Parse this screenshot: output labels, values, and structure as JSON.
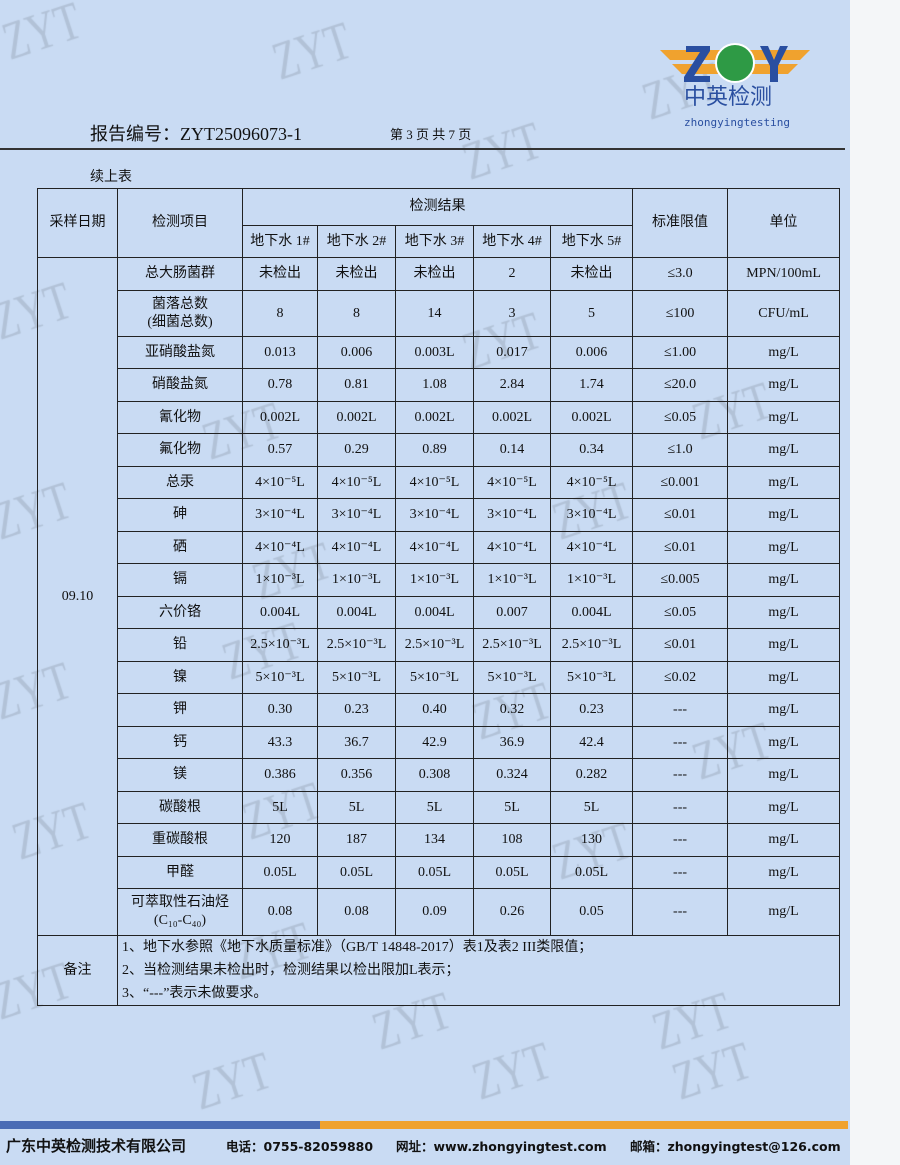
{
  "header": {
    "report_no": "报告编号：ZYT25096073-1",
    "page_of": "第 3 页 共 7 页",
    "logo_letters": "ZOY",
    "logo_cn": "中英检测",
    "logo_en": "zhongyingtesting"
  },
  "watermark": "ZYT",
  "continued": "续上表",
  "table": {
    "h_date": "采样日期",
    "h_item": "检测项目",
    "h_result": "检测结果",
    "h_limit": "标准限值",
    "h_unit": "单位",
    "sites": [
      "地下水 1#",
      "地下水 2#",
      "地下水 3#",
      "地下水 4#",
      "地下水 5#"
    ],
    "date": "09.10",
    "rows": [
      {
        "item": "总大肠菌群",
        "v": [
          "未检出",
          "未检出",
          "未检出",
          "2",
          "未检出"
        ],
        "limit": "≤3.0",
        "unit": "MPN/100mL"
      },
      {
        "item": "菌落总数\n(细菌总数)",
        "v": [
          "8",
          "8",
          "14",
          "3",
          "5"
        ],
        "limit": "≤100",
        "unit": "CFU/mL"
      },
      {
        "item": "亚硝酸盐氮",
        "v": [
          "0.013",
          "0.006",
          "0.003L",
          "0.017",
          "0.006"
        ],
        "limit": "≤1.00",
        "unit": "mg/L"
      },
      {
        "item": "硝酸盐氮",
        "v": [
          "0.78",
          "0.81",
          "1.08",
          "2.84",
          "1.74"
        ],
        "limit": "≤20.0",
        "unit": "mg/L"
      },
      {
        "item": "氰化物",
        "v": [
          "0.002L",
          "0.002L",
          "0.002L",
          "0.002L",
          "0.002L"
        ],
        "limit": "≤0.05",
        "unit": "mg/L"
      },
      {
        "item": "氟化物",
        "v": [
          "0.57",
          "0.29",
          "0.89",
          "0.14",
          "0.34"
        ],
        "limit": "≤1.0",
        "unit": "mg/L"
      },
      {
        "item": "总汞",
        "v": [
          "4×10⁻⁵L",
          "4×10⁻⁵L",
          "4×10⁻⁵L",
          "4×10⁻⁵L",
          "4×10⁻⁵L"
        ],
        "limit": "≤0.001",
        "unit": "mg/L"
      },
      {
        "item": "砷",
        "v": [
          "3×10⁻⁴L",
          "3×10⁻⁴L",
          "3×10⁻⁴L",
          "3×10⁻⁴L",
          "3×10⁻⁴L"
        ],
        "limit": "≤0.01",
        "unit": "mg/L"
      },
      {
        "item": "硒",
        "v": [
          "4×10⁻⁴L",
          "4×10⁻⁴L",
          "4×10⁻⁴L",
          "4×10⁻⁴L",
          "4×10⁻⁴L"
        ],
        "limit": "≤0.01",
        "unit": "mg/L"
      },
      {
        "item": "镉",
        "v": [
          "1×10⁻³L",
          "1×10⁻³L",
          "1×10⁻³L",
          "1×10⁻³L",
          "1×10⁻³L"
        ],
        "limit": "≤0.005",
        "unit": "mg/L"
      },
      {
        "item": "六价铬",
        "v": [
          "0.004L",
          "0.004L",
          "0.004L",
          "0.007",
          "0.004L"
        ],
        "limit": "≤0.05",
        "unit": "mg/L"
      },
      {
        "item": "铅",
        "v": [
          "2.5×10⁻³L",
          "2.5×10⁻³L",
          "2.5×10⁻³L",
          "2.5×10⁻³L",
          "2.5×10⁻³L"
        ],
        "limit": "≤0.01",
        "unit": "mg/L"
      },
      {
        "item": "镍",
        "v": [
          "5×10⁻³L",
          "5×10⁻³L",
          "5×10⁻³L",
          "5×10⁻³L",
          "5×10⁻³L"
        ],
        "limit": "≤0.02",
        "unit": "mg/L"
      },
      {
        "item": "钾",
        "v": [
          "0.30",
          "0.23",
          "0.40",
          "0.32",
          "0.23"
        ],
        "limit": "---",
        "unit": "mg/L"
      },
      {
        "item": "钙",
        "v": [
          "43.3",
          "36.7",
          "42.9",
          "36.9",
          "42.4"
        ],
        "limit": "---",
        "unit": "mg/L"
      },
      {
        "item": "镁",
        "v": [
          "0.386",
          "0.356",
          "0.308",
          "0.324",
          "0.282"
        ],
        "limit": "---",
        "unit": "mg/L"
      },
      {
        "item": "碳酸根",
        "v": [
          "5L",
          "5L",
          "5L",
          "5L",
          "5L"
        ],
        "limit": "---",
        "unit": "mg/L"
      },
      {
        "item": "重碳酸根",
        "v": [
          "120",
          "187",
          "134",
          "108",
          "130"
        ],
        "limit": "---",
        "unit": "mg/L"
      },
      {
        "item": "甲醛",
        "v": [
          "0.05L",
          "0.05L",
          "0.05L",
          "0.05L",
          "0.05L"
        ],
        "limit": "---",
        "unit": "mg/L"
      },
      {
        "item": "可萃取性石油烃\n(C₁₀-C₄₀)",
        "v": [
          "0.08",
          "0.08",
          "0.09",
          "0.26",
          "0.05"
        ],
        "limit": "---",
        "unit": "mg/L"
      }
    ],
    "notes_label": "备注",
    "notes": [
      "1、地下水参照《地下水质量标准》（GB/T 14848-2017）表1及表2 III类限值；",
      "2、当检测结果未检出时，检测结果以检出限加L表示；",
      "3、“---”表示未做要求。"
    ]
  },
  "footer": {
    "company": "广东中英检测技术有限公司",
    "phone": "电话：0755-82059880",
    "website": "网址：www.zhongyingtest.com",
    "email": "邮箱：zhongyingtest@126.com"
  },
  "colors": {
    "page": "#c9dbf3",
    "brand_blue": "#4a6cb5",
    "brand_orange": "#f0a22e"
  }
}
